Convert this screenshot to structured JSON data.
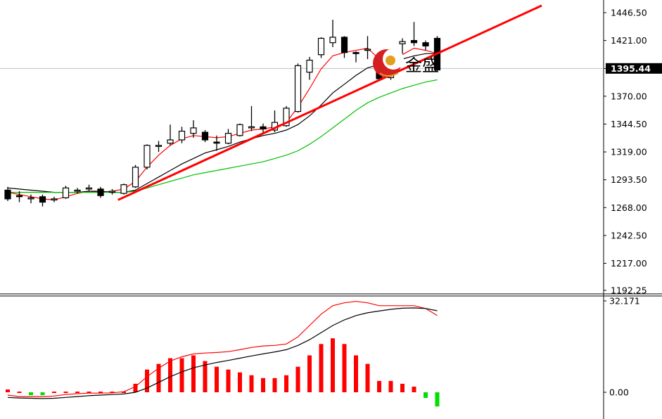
{
  "chart_data": [
    {
      "type": "candlestick",
      "panel": "price",
      "ylim": [
        1187,
        1452
      ],
      "yticks": [
        "1446.50",
        "1421.00",
        "1395.44",
        "1370.00",
        "1344.50",
        "1319.00",
        "1293.50",
        "1268.00",
        "1242.50",
        "1217.00",
        "1192.25"
      ],
      "current_price_label": "1395.44",
      "current_price": 1395.44,
      "candles": [
        {
          "o": 1284,
          "h": 1287,
          "l": 1274,
          "c": 1276
        },
        {
          "o": 1279,
          "h": 1283,
          "l": 1273,
          "c": 1278
        },
        {
          "o": 1277,
          "h": 1280,
          "l": 1272,
          "c": 1277
        },
        {
          "o": 1278,
          "h": 1280,
          "l": 1269,
          "c": 1273
        },
        {
          "o": 1275,
          "h": 1278,
          "l": 1273,
          "c": 1276
        },
        {
          "o": 1277,
          "h": 1288,
          "l": 1276,
          "c": 1286
        },
        {
          "o": 1284,
          "h": 1286,
          "l": 1281,
          "c": 1284
        },
        {
          "o": 1285,
          "h": 1289,
          "l": 1283,
          "c": 1286
        },
        {
          "o": 1285,
          "h": 1287,
          "l": 1277,
          "c": 1279
        },
        {
          "o": 1282,
          "h": 1285,
          "l": 1280,
          "c": 1283
        },
        {
          "o": 1281,
          "h": 1290,
          "l": 1280,
          "c": 1289
        },
        {
          "o": 1287,
          "h": 1307,
          "l": 1286,
          "c": 1305
        },
        {
          "o": 1305,
          "h": 1326,
          "l": 1303,
          "c": 1325
        },
        {
          "o": 1324,
          "h": 1329,
          "l": 1319,
          "c": 1325
        },
        {
          "o": 1327,
          "h": 1344,
          "l": 1325,
          "c": 1330
        },
        {
          "o": 1330,
          "h": 1342,
          "l": 1327,
          "c": 1338
        },
        {
          "o": 1336,
          "h": 1348,
          "l": 1332,
          "c": 1341
        },
        {
          "o": 1337,
          "h": 1339,
          "l": 1328,
          "c": 1330
        },
        {
          "o": 1328,
          "h": 1334,
          "l": 1320,
          "c": 1327
        },
        {
          "o": 1327,
          "h": 1340,
          "l": 1326,
          "c": 1336
        },
        {
          "o": 1334,
          "h": 1345,
          "l": 1333,
          "c": 1344
        },
        {
          "o": 1341,
          "h": 1361,
          "l": 1338,
          "c": 1342
        },
        {
          "o": 1342,
          "h": 1345,
          "l": 1335,
          "c": 1340
        },
        {
          "o": 1339,
          "h": 1357,
          "l": 1337,
          "c": 1346
        },
        {
          "o": 1343,
          "h": 1361,
          "l": 1342,
          "c": 1359
        },
        {
          "o": 1356,
          "h": 1400,
          "l": 1355,
          "c": 1398
        },
        {
          "o": 1392,
          "h": 1406,
          "l": 1385,
          "c": 1403
        },
        {
          "o": 1408,
          "h": 1424,
          "l": 1405,
          "c": 1423
        },
        {
          "o": 1419,
          "h": 1440,
          "l": 1415,
          "c": 1424
        },
        {
          "o": 1424,
          "h": 1425,
          "l": 1405,
          "c": 1410
        },
        {
          "o": 1410,
          "h": 1411,
          "l": 1401,
          "c": 1409
        },
        {
          "o": 1412,
          "h": 1425,
          "l": 1404,
          "c": 1413
        },
        {
          "o": 1400,
          "h": 1404,
          "l": 1385,
          "c": 1386
        },
        {
          "o": 1387,
          "h": 1401,
          "l": 1385,
          "c": 1398
        },
        {
          "o": 1418,
          "h": 1423,
          "l": 1405,
          "c": 1420
        },
        {
          "o": 1421,
          "h": 1438,
          "l": 1416,
          "c": 1419
        },
        {
          "o": 1419,
          "h": 1421,
          "l": 1412,
          "c": 1416
        },
        {
          "o": 1423,
          "h": 1425,
          "l": 1392,
          "c": 1394
        }
      ],
      "series": [
        {
          "color": "#ff0000",
          "values": [
            1282,
            1280,
            1278,
            1276,
            1275,
            1278,
            1281,
            1283,
            1282,
            1283,
            1285,
            1292,
            1305,
            1316,
            1325,
            1331,
            1334,
            1333,
            1332,
            1333,
            1336,
            1339,
            1340,
            1342,
            1346,
            1360,
            1377,
            1395,
            1407,
            1410,
            1412,
            1414,
            1404,
            1401,
            1408,
            1414,
            1412,
            1409
          ]
        },
        {
          "color": "#000000",
          "values": [
            1286,
            1285,
            1284,
            1283,
            1282,
            1282,
            1282,
            1283,
            1283,
            1282,
            1282,
            1284,
            1290,
            1296,
            1302,
            1308,
            1313,
            1318,
            1321,
            1324,
            1328,
            1331,
            1334,
            1336,
            1339,
            1344,
            1352,
            1362,
            1373,
            1381,
            1389,
            1396,
            1399,
            1401,
            1404,
            1407,
            1409,
            1409
          ]
        },
        {
          "color": "#00c000",
          "values": [
            1282,
            1282,
            1282,
            1282,
            1282,
            1282,
            1282,
            1282,
            1282,
            1282,
            1282,
            1283,
            1286,
            1289,
            1292,
            1295,
            1298,
            1300,
            1302,
            1304,
            1306,
            1308,
            1310,
            1313,
            1316,
            1320,
            1326,
            1333,
            1341,
            1349,
            1357,
            1364,
            1369,
            1373,
            1377,
            1380,
            1383,
            1385
          ]
        }
      ],
      "trendline": {
        "color": "#ff0000",
        "from": {
          "index": 9.5,
          "price": 1275
        },
        "to": {
          "index": 46,
          "price": 1453
        }
      }
    },
    {
      "type": "histogram",
      "panel": "macd",
      "yticks": [
        "32.171",
        "0.00"
      ],
      "ylim": [
        -8,
        34
      ],
      "zero": 0,
      "bars": [
        1,
        0,
        -1,
        -1,
        0,
        0,
        0,
        0,
        0,
        0,
        0,
        3,
        8,
        10,
        12,
        12,
        13,
        11,
        9,
        8,
        7,
        6,
        5,
        5,
        6,
        9,
        13,
        17,
        19,
        17,
        13,
        10,
        4,
        4,
        3,
        2,
        -2,
        -5
      ],
      "lines": [
        {
          "color": "#ff0000",
          "values": [
            -1,
            -1.5,
            -1.5,
            -1.5,
            -1.3,
            -0.8,
            -0.5,
            -0.3,
            -0.3,
            -0.2,
            0.2,
            2,
            5.5,
            8.5,
            11,
            12.5,
            13.5,
            13.8,
            14,
            14.3,
            15,
            15.8,
            16.3,
            16.5,
            17,
            19.5,
            23.5,
            27.5,
            30.5,
            31.5,
            32,
            31.5,
            30.5,
            30.5,
            30.5,
            30.5,
            29.5,
            27
          ]
        },
        {
          "color": "#000000",
          "values": [
            -1.8,
            -2,
            -2.1,
            -2.2,
            -2.1,
            -1.8,
            -1.5,
            -1.2,
            -1,
            -0.8,
            -0.6,
            0,
            1.5,
            3.5,
            5.5,
            7.2,
            8.6,
            9.6,
            10.5,
            11.2,
            12,
            12.8,
            13.5,
            14.2,
            15,
            16.5,
            18.5,
            21,
            23.5,
            25.5,
            27,
            28,
            28.6,
            29.2,
            29.6,
            29.7,
            29.5,
            28.7
          ]
        }
      ]
    }
  ],
  "watermark": {
    "text": "金盛"
  },
  "colors": {
    "up_body": "#ffffff",
    "down_body": "#000000",
    "hist_pos": "#ff0000",
    "hist_neg": "#00e000",
    "grid": "#c0c0c0"
  }
}
